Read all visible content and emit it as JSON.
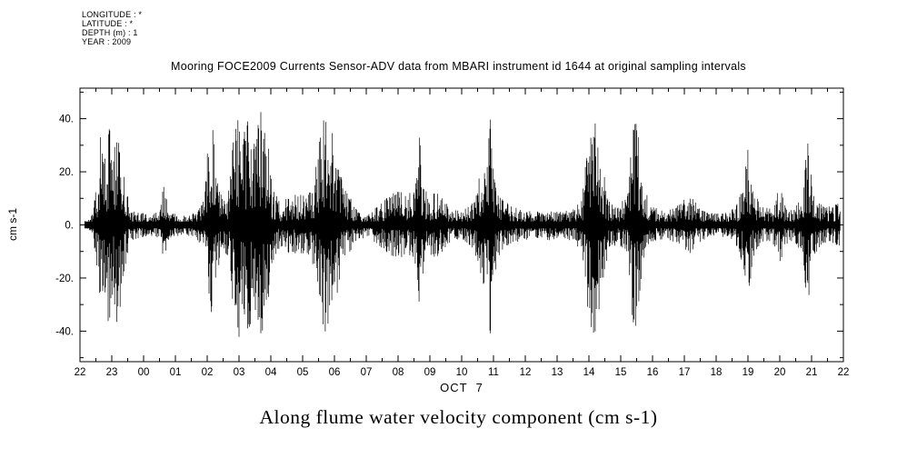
{
  "header": {
    "meta_lines": [
      "LONGITUDE : *",
      "LATITUDE : *",
      "DEPTH (m) : 1",
      "YEAR : 2009"
    ],
    "title": "Mooring FOCE2009 Currents Sensor-ADV data from MBARI instrument id 1644 at original sampling intervals"
  },
  "caption": "Along flume water velocity component (cm s-1)",
  "colors": {
    "ink": "#000000",
    "background": "#ffffff"
  },
  "chart_data": {
    "type": "line",
    "title": "Mooring FOCE2009 Currents Sensor-ADV data from MBARI instrument id 1644 at original sampling intervals",
    "xlabel": "OCT  7",
    "ylabel": "cm s-1",
    "ylim": [
      -51.5,
      51.5
    ],
    "x_hours_span": 24,
    "grid": "off",
    "legend": "none",
    "yticks": [
      {
        "value": 40,
        "label": "40."
      },
      {
        "value": 20,
        "label": "20."
      },
      {
        "value": 0,
        "label": "0."
      },
      {
        "value": -20,
        "label": "-20."
      },
      {
        "value": -40,
        "label": "-40."
      }
    ],
    "yminors": [
      -50,
      -30,
      -10,
      10,
      30,
      50
    ],
    "xtick_labels": [
      "22",
      "23",
      "00",
      "01",
      "02",
      "03",
      "04",
      "05",
      "06",
      "07",
      "08",
      "09",
      "10",
      "11",
      "12",
      "13",
      "14",
      "15",
      "16",
      "17",
      "18",
      "19",
      "20",
      "21",
      "22"
    ],
    "data_start_hour": 0.15,
    "data_end_hour": 23.9,
    "base_amplitude": 1.8,
    "noise_seed": 20091007,
    "amplitude_envelope_units": "hours since first 22:00 tick, peak |velocity| in cm/s",
    "amplitude_envelope": [
      [
        0.0,
        0.5
      ],
      [
        0.2,
        1.5
      ],
      [
        0.4,
        4
      ],
      [
        0.55,
        18
      ],
      [
        0.65,
        40
      ],
      [
        0.78,
        26
      ],
      [
        0.9,
        40
      ],
      [
        1.05,
        28
      ],
      [
        1.2,
        40
      ],
      [
        1.35,
        20
      ],
      [
        1.55,
        9
      ],
      [
        1.85,
        5
      ],
      [
        2.2,
        4
      ],
      [
        2.5,
        5
      ],
      [
        2.63,
        16
      ],
      [
        2.8,
        5
      ],
      [
        3.2,
        4
      ],
      [
        3.6,
        4.5
      ],
      [
        3.9,
        10
      ],
      [
        4.05,
        34
      ],
      [
        4.15,
        40
      ],
      [
        4.3,
        20
      ],
      [
        4.5,
        8
      ],
      [
        4.7,
        14
      ],
      [
        4.85,
        40
      ],
      [
        5.0,
        43
      ],
      [
        5.15,
        34
      ],
      [
        5.3,
        43
      ],
      [
        5.45,
        30
      ],
      [
        5.6,
        40
      ],
      [
        5.75,
        46
      ],
      [
        5.9,
        32
      ],
      [
        6.05,
        14
      ],
      [
        6.3,
        8
      ],
      [
        6.6,
        11
      ],
      [
        6.9,
        12
      ],
      [
        7.15,
        11
      ],
      [
        7.35,
        16
      ],
      [
        7.55,
        34
      ],
      [
        7.7,
        42
      ],
      [
        7.85,
        40
      ],
      [
        8.05,
        30
      ],
      [
        8.25,
        16
      ],
      [
        8.5,
        10
      ],
      [
        8.8,
        6
      ],
      [
        9.1,
        5
      ],
      [
        9.4,
        8
      ],
      [
        9.7,
        11
      ],
      [
        10.0,
        13
      ],
      [
        10.3,
        11
      ],
      [
        10.55,
        16
      ],
      [
        10.65,
        40
      ],
      [
        10.8,
        15
      ],
      [
        11.0,
        11
      ],
      [
        11.25,
        13
      ],
      [
        11.45,
        9
      ],
      [
        11.75,
        6
      ],
      [
        12.05,
        6
      ],
      [
        12.35,
        9
      ],
      [
        12.6,
        20
      ],
      [
        12.8,
        28
      ],
      [
        12.9,
        42
      ],
      [
        13.05,
        18
      ],
      [
        13.25,
        11
      ],
      [
        13.55,
        7
      ],
      [
        13.9,
        6
      ],
      [
        14.3,
        5
      ],
      [
        14.7,
        6
      ],
      [
        15.1,
        5
      ],
      [
        15.5,
        6
      ],
      [
        15.8,
        11
      ],
      [
        15.95,
        34
      ],
      [
        16.1,
        43
      ],
      [
        16.25,
        40
      ],
      [
        16.4,
        24
      ],
      [
        16.6,
        11
      ],
      [
        16.9,
        7
      ],
      [
        17.2,
        11
      ],
      [
        17.4,
        40
      ],
      [
        17.55,
        37
      ],
      [
        17.75,
        13
      ],
      [
        18.0,
        7
      ],
      [
        18.4,
        5
      ],
      [
        18.75,
        7
      ],
      [
        19.0,
        10
      ],
      [
        19.2,
        11
      ],
      [
        19.45,
        7
      ],
      [
        19.75,
        4.5
      ],
      [
        20.1,
        4.5
      ],
      [
        20.45,
        5
      ],
      [
        20.7,
        9
      ],
      [
        20.9,
        18
      ],
      [
        21.0,
        35
      ],
      [
        21.15,
        13
      ],
      [
        21.45,
        7
      ],
      [
        21.75,
        6
      ],
      [
        22.0,
        15
      ],
      [
        22.15,
        8
      ],
      [
        22.45,
        6
      ],
      [
        22.7,
        11
      ],
      [
        22.88,
        33
      ],
      [
        23.05,
        12
      ],
      [
        23.35,
        7
      ],
      [
        23.65,
        7
      ],
      [
        23.9,
        9
      ]
    ]
  }
}
